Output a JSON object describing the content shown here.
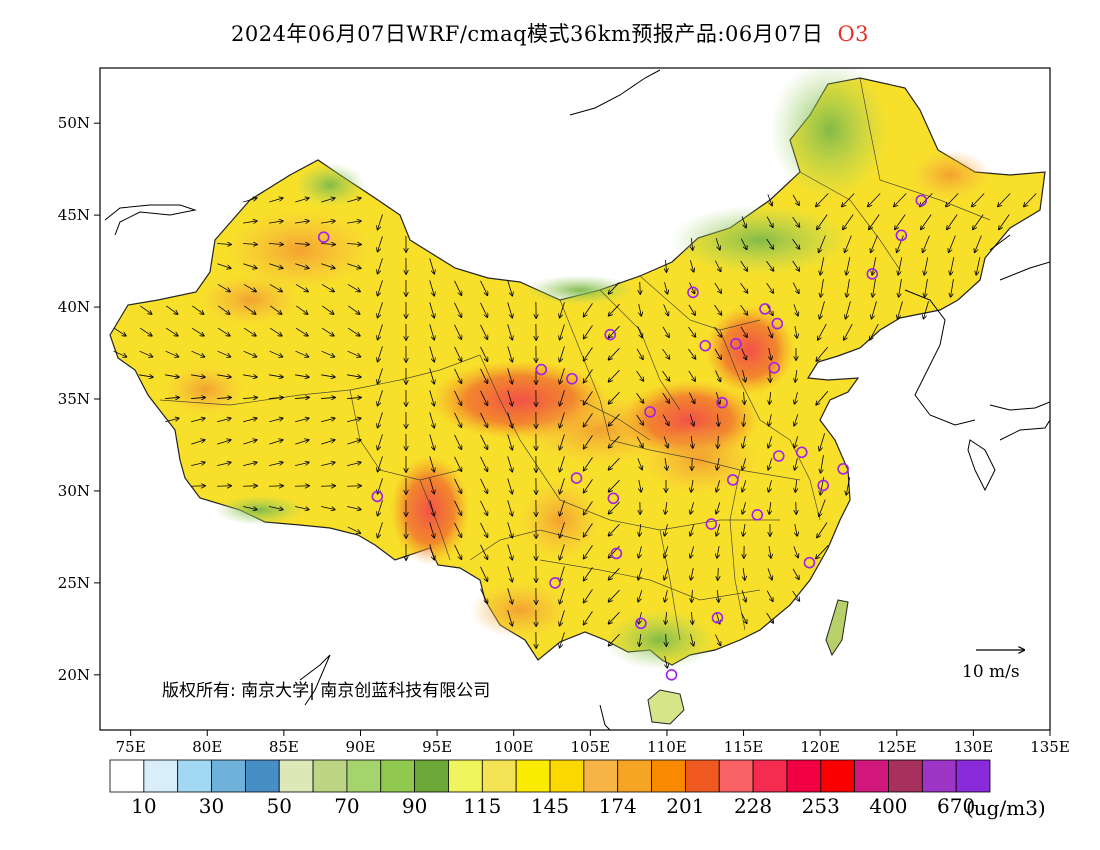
{
  "title": "2024年06月07日WRF/cmaq模式36km预报产品:06月07日",
  "species": "O3",
  "copyright": "版权所有: 南京大学| 南京创蓝科技有限公司",
  "wind_legend": "10 m/s",
  "unit": "(ug/m3)",
  "lat_ticks": [
    "20N",
    "25N",
    "30N",
    "35N",
    "40N",
    "45N",
    "50N"
  ],
  "lon_ticks": [
    "75E",
    "80E",
    "85E",
    "90E",
    "95E",
    "100E",
    "105E",
    "110E",
    "115E",
    "120E",
    "125E",
    "130E",
    "135E"
  ],
  "colorbar": {
    "colors": [
      "#ffffff",
      "#d8eef8",
      "#a2d8f2",
      "#6eb2dc",
      "#468ec4",
      "#dde7b8",
      "#bcd686",
      "#a6d46c",
      "#90c850",
      "#6ca838",
      "#eef55c",
      "#f3e254",
      "#fbeb00",
      "#fbd800",
      "#f6b446",
      "#f6a424",
      "#f88a00",
      "#f05a20",
      "#fa6268",
      "#f42c50",
      "#f20044",
      "#fc0000",
      "#d2187c",
      "#a8305c",
      "#9c34c6",
      "#8a2ad8"
    ],
    "labels": [
      "10",
      "30",
      "50",
      "70",
      "90",
      "115",
      "145",
      "174",
      "201",
      "228",
      "253",
      "400",
      "670"
    ]
  },
  "sites": [
    {
      "lon": 87.6,
      "lat": 43.8
    },
    {
      "lon": 101.8,
      "lat": 36.6
    },
    {
      "lon": 103.8,
      "lat": 36.1
    },
    {
      "lon": 106.3,
      "lat": 38.5
    },
    {
      "lon": 111.7,
      "lat": 40.8
    },
    {
      "lon": 112.5,
      "lat": 37.9
    },
    {
      "lon": 114.5,
      "lat": 38.0
    },
    {
      "lon": 116.4,
      "lat": 39.9
    },
    {
      "lon": 117.2,
      "lat": 39.1
    },
    {
      "lon": 117.0,
      "lat": 36.7
    },
    {
      "lon": 113.6,
      "lat": 34.8
    },
    {
      "lon": 108.9,
      "lat": 34.3
    },
    {
      "lon": 104.1,
      "lat": 30.7
    },
    {
      "lon": 106.5,
      "lat": 29.6
    },
    {
      "lon": 91.1,
      "lat": 29.7
    },
    {
      "lon": 102.7,
      "lat": 25.0
    },
    {
      "lon": 106.7,
      "lat": 26.6
    },
    {
      "lon": 108.3,
      "lat": 22.8
    },
    {
      "lon": 113.3,
      "lat": 23.1
    },
    {
      "lon": 110.3,
      "lat": 20.0
    },
    {
      "lon": 112.9,
      "lat": 28.2
    },
    {
      "lon": 115.9,
      "lat": 28.7
    },
    {
      "lon": 114.3,
      "lat": 30.6
    },
    {
      "lon": 117.3,
      "lat": 31.9
    },
    {
      "lon": 118.8,
      "lat": 32.1
    },
    {
      "lon": 121.5,
      "lat": 31.2
    },
    {
      "lon": 120.2,
      "lat": 30.3
    },
    {
      "lon": 119.3,
      "lat": 26.1
    },
    {
      "lon": 123.4,
      "lat": 41.8
    },
    {
      "lon": 125.3,
      "lat": 43.9
    },
    {
      "lon": 126.6,
      "lat": 45.8
    }
  ]
}
